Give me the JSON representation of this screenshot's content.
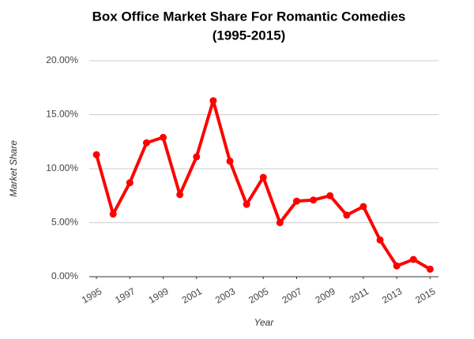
{
  "chart_data": {
    "type": "line",
    "title": [
      "Box Office Market Share For Romantic Comedies",
      "(1995-2015)"
    ],
    "x_label": "Year",
    "y_label": "Market Share",
    "x": [
      1995,
      1996,
      1997,
      1998,
      1999,
      2000,
      2001,
      2002,
      2003,
      2004,
      2005,
      2006,
      2007,
      2008,
      2009,
      2010,
      2011,
      2012,
      2013,
      2014,
      2015
    ],
    "series": [
      {
        "color": "#ff0000",
        "values": [
          11.3,
          5.8,
          8.7,
          12.4,
          12.9,
          7.6,
          11.1,
          16.3,
          10.7,
          6.7,
          9.2,
          5.0,
          7.0,
          7.1,
          7.5,
          5.7,
          6.5,
          3.4,
          1.0,
          1.6,
          0.7
        ]
      }
    ],
    "xlim": [
      1994.57,
      2015.5
    ],
    "xticks": [
      1995,
      1997,
      1999,
      2001,
      2003,
      2005,
      2007,
      2009,
      2011,
      2013,
      2015
    ],
    "ylim": [
      0,
      20
    ],
    "yticks": [
      {
        "value": 0,
        "label": "0.00%"
      },
      {
        "value": 5,
        "label": "5.00%"
      },
      {
        "value": 10,
        "label": "10.00%"
      },
      {
        "value": 15,
        "label": "15.00%"
      },
      {
        "value": 20,
        "label": "20.00%"
      }
    ],
    "grid": true
  }
}
